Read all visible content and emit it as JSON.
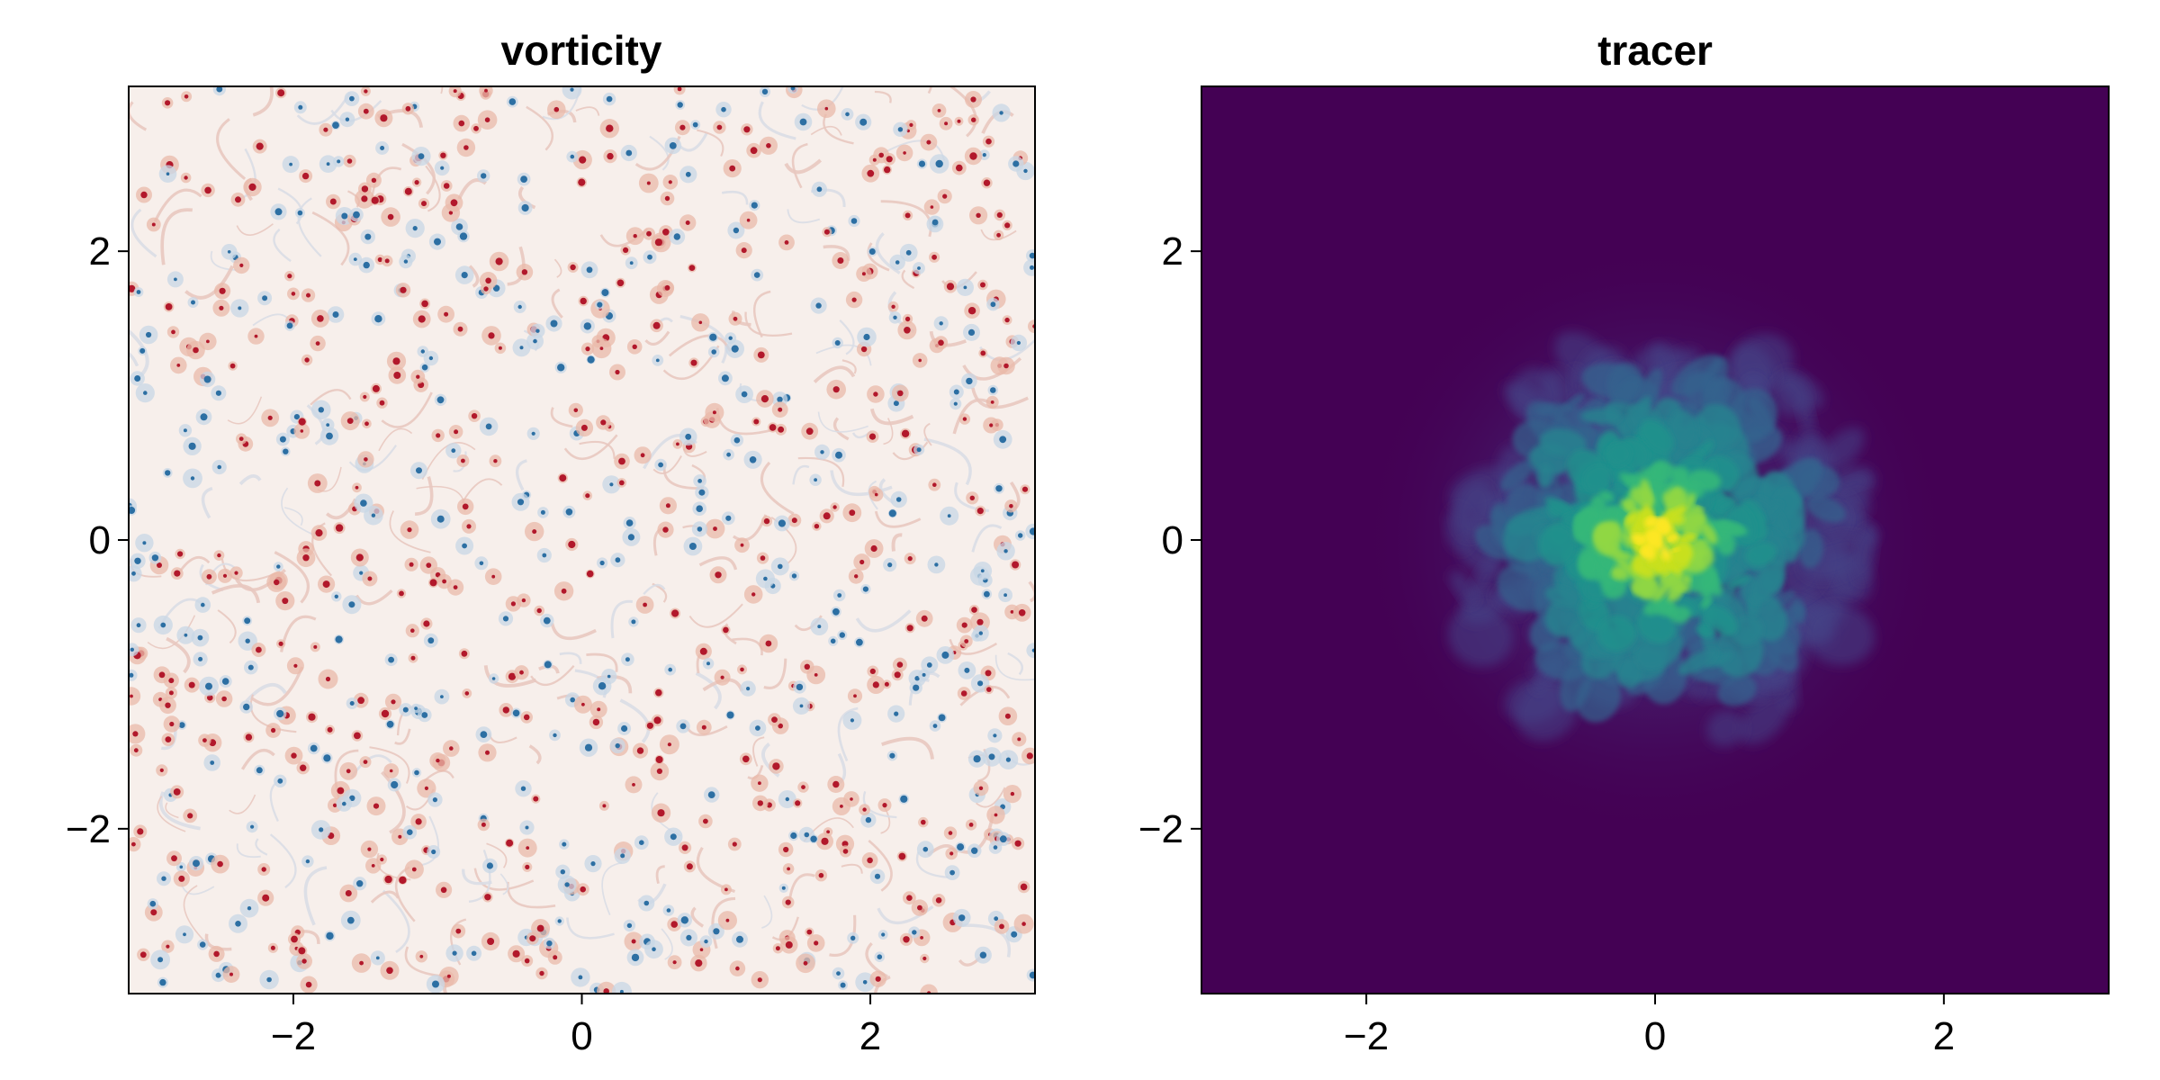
{
  "chart_data": [
    {
      "type": "heatmap",
      "title": "vorticity",
      "xlabel": "",
      "ylabel": "",
      "xlim": [
        -3.14159,
        3.14159
      ],
      "ylim": [
        -3.14159,
        3.14159
      ],
      "xticks": [
        -2,
        0,
        2
      ],
      "yticks": [
        -2,
        0,
        2
      ],
      "xtick_labels": [
        "−2",
        "0",
        "2"
      ],
      "ytick_labels": [
        "−2",
        "0",
        "2"
      ],
      "colormap": "balance (blue-white-red)",
      "colors": {
        "negative": "#2c6fa3",
        "zero": "#f7f2f0",
        "positive": "#b2182b"
      },
      "field": "turbulent vorticity: many small coherent vortices of both signs on a pale background"
    },
    {
      "type": "heatmap",
      "title": "tracer",
      "xlabel": "",
      "ylabel": "",
      "xlim": [
        -3.14159,
        3.14159
      ],
      "ylim": [
        -3.14159,
        3.14159
      ],
      "xticks": [
        -2,
        0,
        2
      ],
      "yticks": [
        -2,
        0,
        2
      ],
      "xtick_labels": [
        "−2",
        "0",
        "2"
      ],
      "ytick_labels": [
        "−2",
        "0",
        "2"
      ],
      "colormap": "viridis",
      "colors": {
        "min": "#440154",
        "mid": "#21918c",
        "max": "#fde725"
      },
      "field": "tracer concentration: filamented blob centered near (0, 0), concentration decaying with radius, zero beyond about r = 2"
    }
  ]
}
